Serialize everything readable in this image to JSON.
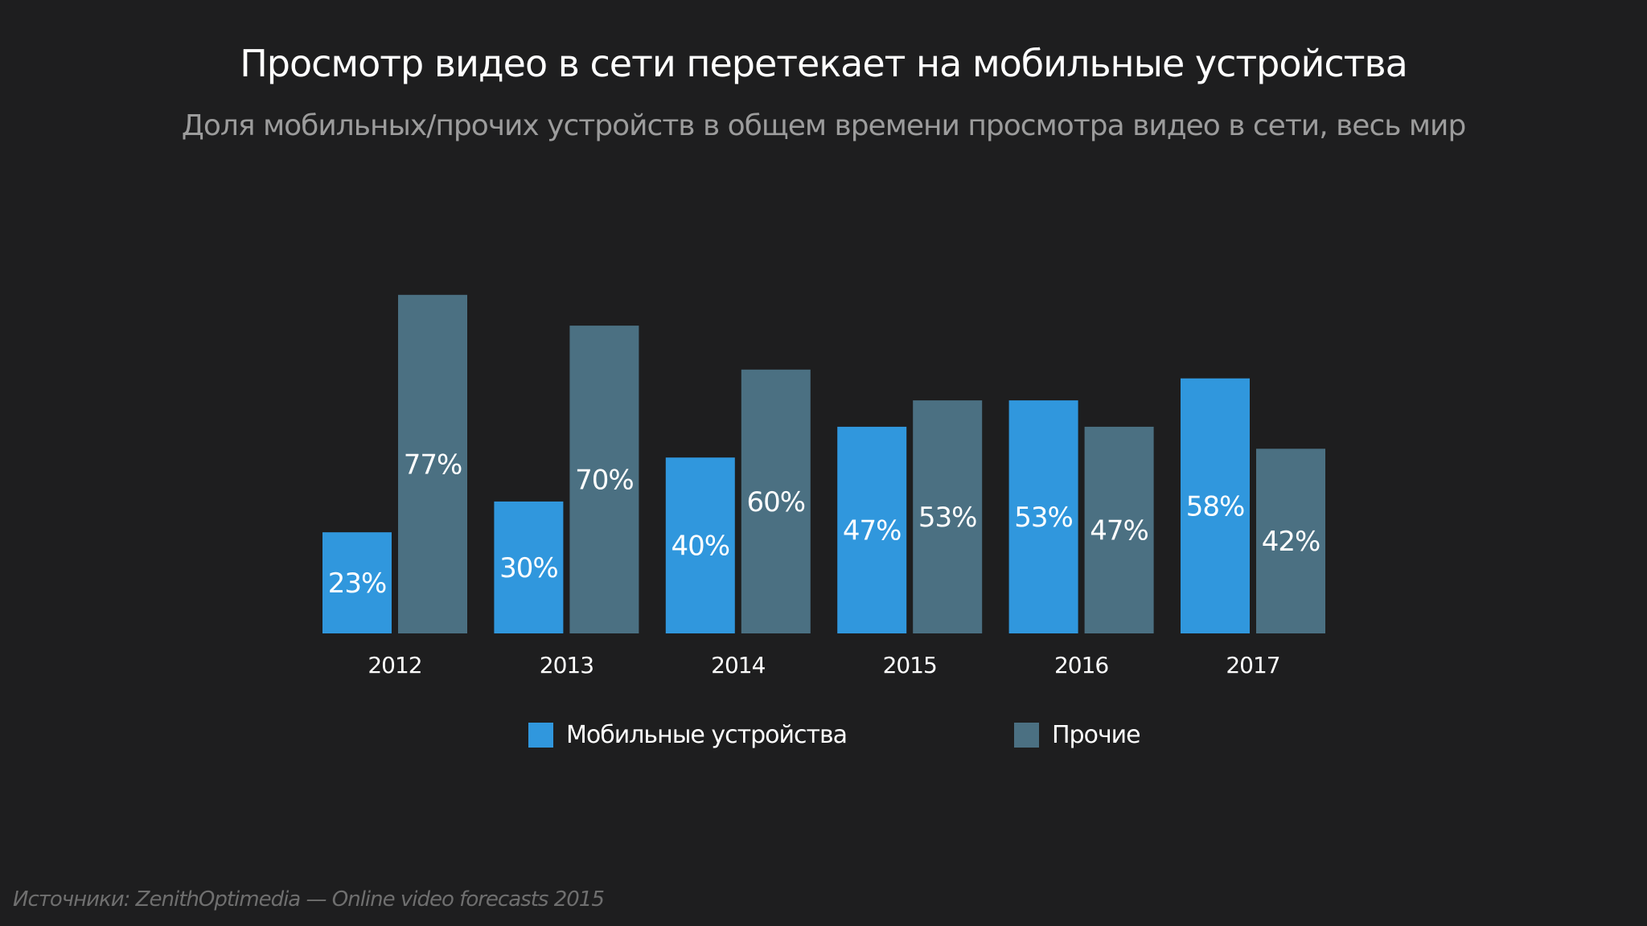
{
  "colors": {
    "background": "#1e1e1f",
    "mobile": "#3097dd",
    "other": "#4b7082"
  },
  "chart_data": {
    "type": "bar",
    "title": "Просмотр видео в сети перетекает на мобильные устройства",
    "subtitle": "Доля мобильных/прочих устройств в общем времени просмотра видео в сети, весь мир",
    "categories": [
      "2012",
      "2013",
      "2014",
      "2015",
      "2016",
      "2017"
    ],
    "series": [
      {
        "name": "Мобильные устройства",
        "values": [
          23,
          30,
          40,
          47,
          53,
          58
        ],
        "labels": [
          "23%",
          "30%",
          "40%",
          "47%",
          "53%",
          "58%"
        ]
      },
      {
        "name": "Прочие",
        "values": [
          77,
          70,
          60,
          53,
          47,
          42
        ],
        "labels": [
          "77%",
          "70%",
          "60%",
          "53%",
          "47%",
          "42%"
        ]
      }
    ],
    "ylim": [
      0,
      100
    ],
    "grid": false,
    "legend_position": "bottom",
    "source": "Источники: ZenithOptimedia — Online video forecasts 2015"
  }
}
